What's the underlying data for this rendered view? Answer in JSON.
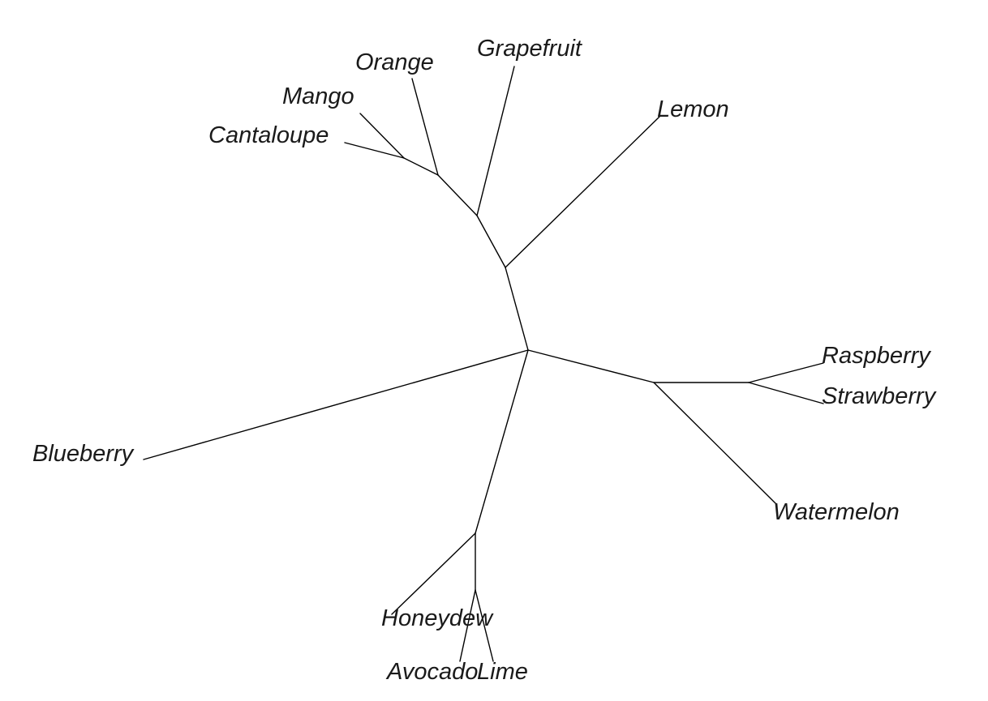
{
  "diagram": {
    "type": "unrooted phylogenetic tree",
    "line_color": "#000000",
    "label_color": "#1a1a1a",
    "background": "#ffffff",
    "tips": [
      {
        "id": "orange",
        "label": "Orange"
      },
      {
        "id": "grapefruit",
        "label": "Grapefruit"
      },
      {
        "id": "mango",
        "label": "Mango"
      },
      {
        "id": "lemon",
        "label": "Lemon"
      },
      {
        "id": "cantaloupe",
        "label": "Cantaloupe"
      },
      {
        "id": "raspberry",
        "label": "Raspberry"
      },
      {
        "id": "strawberry",
        "label": "Strawberry"
      },
      {
        "id": "blueberry",
        "label": "Blueberry"
      },
      {
        "id": "watermelon",
        "label": "Watermelon"
      },
      {
        "id": "honeydew",
        "label": "Honeydew"
      },
      {
        "id": "avocado",
        "label": "Avocado"
      },
      {
        "id": "lime",
        "label": "Lime"
      }
    ],
    "edges": [
      [
        "root",
        "lemon-node"
      ],
      [
        "lemon-node",
        "lemon"
      ],
      [
        "lemon-node",
        "grapefruit-node"
      ],
      [
        "grapefruit-node",
        "grapefruit"
      ],
      [
        "grapefruit-node",
        "orange-node"
      ],
      [
        "orange-node",
        "orange"
      ],
      [
        "orange-node",
        "mango-node"
      ],
      [
        "mango-node",
        "mango"
      ],
      [
        "mango-node",
        "cantaloupe"
      ],
      [
        "root",
        "berry-node"
      ],
      [
        "berry-node",
        "watermelon"
      ],
      [
        "berry-node",
        "rs-node"
      ],
      [
        "rs-node",
        "raspberry"
      ],
      [
        "rs-node",
        "strawberry"
      ],
      [
        "root",
        "blueberry"
      ],
      [
        "root",
        "honeydew-node"
      ],
      [
        "honeydew-node",
        "honeydew"
      ],
      [
        "honeydew-node",
        "al-node"
      ],
      [
        "al-node",
        "avocado"
      ],
      [
        "al-node",
        "lime"
      ]
    ]
  }
}
